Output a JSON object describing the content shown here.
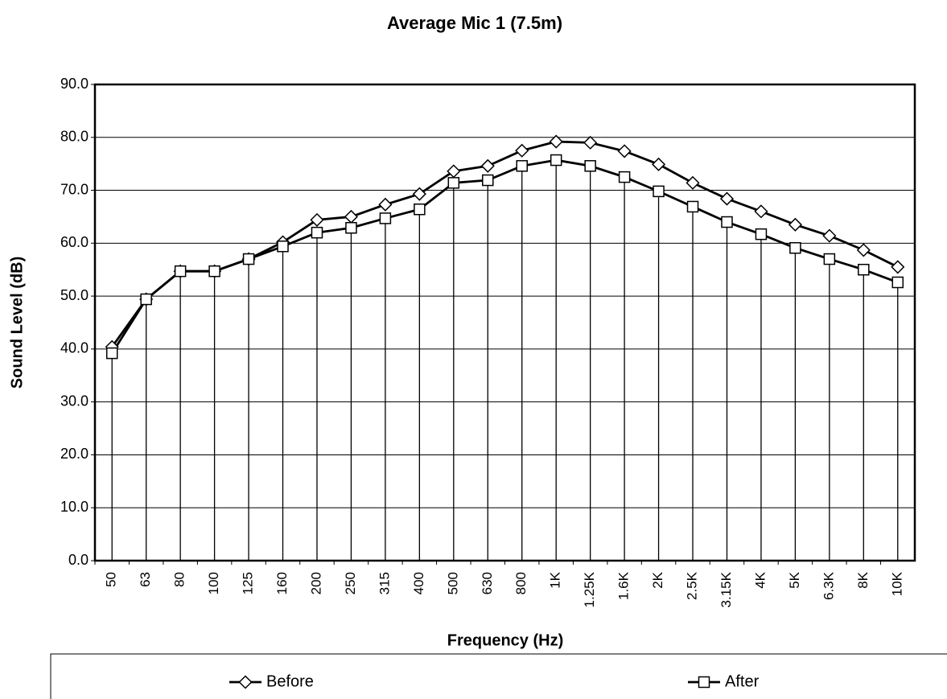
{
  "chart_data": {
    "type": "line",
    "title": "Average Mic 1 (7.5m)",
    "x_label": "Frequency (Hz)",
    "y_label": "Sound Level (dB)",
    "categories": [
      "50",
      "63",
      "80",
      "100",
      "125",
      "160",
      "200",
      "250",
      "315",
      "400",
      "500",
      "630",
      "800",
      "1K",
      "1.25K",
      "1.6K",
      "2K",
      "2.5K",
      "3.15K",
      "4K",
      "5K",
      "6.3K",
      "8K",
      "10K"
    ],
    "series": [
      {
        "name": "Before",
        "color": "#000000",
        "marker": "diamond",
        "values": [
          40.4,
          49.4,
          54.7,
          54.7,
          57.0,
          60.2,
          64.4,
          65.0,
          67.3,
          69.3,
          73.6,
          74.6,
          77.5,
          79.2,
          79.0,
          77.4,
          74.9,
          71.4,
          68.4,
          66.0,
          63.5,
          61.4,
          58.7,
          55.5
        ]
      },
      {
        "name": "After",
        "color": "#000000",
        "marker": "square",
        "values": [
          39.2,
          49.4,
          54.7,
          54.7,
          57.0,
          59.4,
          62.0,
          62.9,
          64.7,
          66.4,
          71.4,
          71.9,
          74.6,
          75.7,
          74.6,
          72.5,
          69.8,
          66.9,
          64.0,
          61.7,
          59.1,
          57.0,
          55.0,
          52.6
        ]
      }
    ],
    "ylim": [
      0,
      90
    ],
    "yticks": [
      {
        "value": 0,
        "label": "0.0"
      },
      {
        "value": 10,
        "label": "10.0"
      },
      {
        "value": 20,
        "label": "20.0"
      },
      {
        "value": 30,
        "label": "30.0"
      },
      {
        "value": 40,
        "label": "40.0"
      },
      {
        "value": 50,
        "label": "50.0"
      },
      {
        "value": 60,
        "label": "60.0"
      },
      {
        "value": 70,
        "label": "70.0"
      },
      {
        "value": 80,
        "label": "80.0"
      },
      {
        "value": 90,
        "label": "90.0"
      }
    ],
    "grid": true,
    "drop_lines": true,
    "legend": "bottom"
  }
}
